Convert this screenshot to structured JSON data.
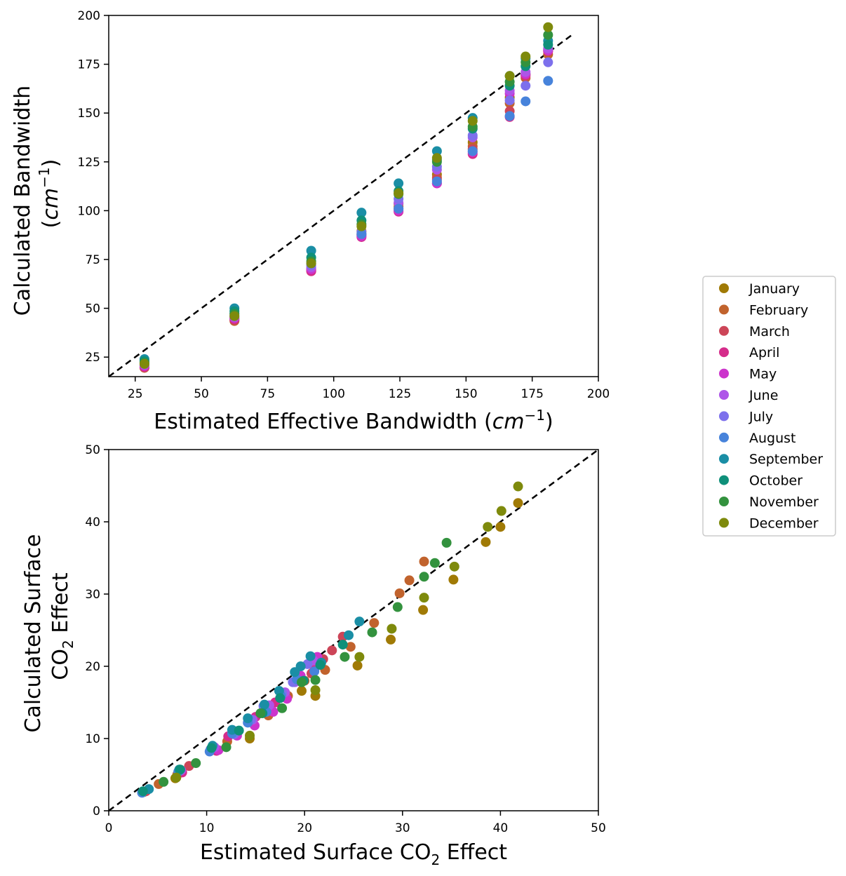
{
  "chart_data": [
    {
      "type": "scatter",
      "xlabel": "Estimated Effective Bandwidth (cm⁻¹)",
      "ylabel": [
        "Calculated Bandwidth",
        "(cm⁻¹)"
      ],
      "xlim": [
        15,
        200
      ],
      "ylim": [
        15,
        200
      ],
      "xticks": [
        25,
        50,
        75,
        100,
        125,
        150,
        175,
        200
      ],
      "yticks": [
        25,
        50,
        75,
        100,
        125,
        150,
        175,
        200
      ],
      "reference_line": {
        "style": "dashed",
        "color": "#000000",
        "points": [
          [
            15,
            15
          ],
          [
            190,
            190
          ]
        ]
      },
      "x": [
        28.5,
        62.5,
        91.5,
        110.5,
        124.5,
        139.0,
        152.5,
        166.5,
        172.5,
        181.0
      ],
      "series": [
        {
          "name": "January",
          "values": [
            19.8,
            44.8,
            70.0,
            89.5,
            103.5,
            118.5,
            135.0,
            158.0,
            170.0,
            182.5
          ]
        },
        {
          "name": "February",
          "values": [
            19.5,
            43.5,
            69.0,
            88.0,
            102.0,
            117.0,
            133.0,
            155.0,
            168.0,
            180.0
          ]
        },
        {
          "name": "March",
          "values": [
            19.8,
            44.0,
            69.5,
            87.5,
            101.0,
            116.0,
            131.5,
            151.0,
            169.0,
            181.5
          ]
        },
        {
          "name": "April",
          "values": [
            20.0,
            44.5,
            69.0,
            86.5,
            99.5,
            114.0,
            129.0,
            148.0,
            169.5,
            182.0
          ]
        },
        {
          "name": "May",
          "values": [
            20.5,
            45.0,
            70.0,
            87.0,
            100.0,
            114.0,
            130.0,
            160.0,
            170.0,
            182.0
          ]
        },
        {
          "name": "June",
          "values": [
            21.0,
            45.5,
            71.0,
            88.0,
            104.0,
            121.0,
            137.5,
            161.5,
            171.0,
            183.0
          ]
        },
        {
          "name": "July",
          "values": [
            21.5,
            46.0,
            72.0,
            89.0,
            106.0,
            122.5,
            138.5,
            156.5,
            164.0,
            176.0
          ]
        },
        {
          "name": "August",
          "values": [
            22.5,
            47.5,
            73.0,
            88.0,
            101.0,
            115.0,
            130.5,
            148.5,
            156.0,
            166.5
          ]
        },
        {
          "name": "September",
          "values": [
            24.0,
            50.0,
            79.5,
            99.0,
            114.0,
            130.5,
            147.5,
            169.0,
            178.0,
            187.0
          ]
        },
        {
          "name": "October",
          "values": [
            23.0,
            48.5,
            76.0,
            95.0,
            110.0,
            126.0,
            142.0,
            164.0,
            174.0,
            185.0
          ]
        },
        {
          "name": "November",
          "values": [
            22.0,
            47.0,
            74.0,
            93.0,
            108.5,
            125.0,
            143.0,
            166.0,
            176.0,
            190.0
          ]
        },
        {
          "name": "December",
          "values": [
            21.5,
            46.0,
            73.0,
            92.0,
            109.0,
            127.0,
            146.0,
            169.0,
            179.0,
            194.0
          ]
        }
      ]
    },
    {
      "type": "scatter",
      "xlabel": "Estimated Surface CO₂ Effect",
      "ylabel": [
        "Calculated Surface",
        "CO₂ Effect"
      ],
      "xlim": [
        0,
        50
      ],
      "ylim": [
        0,
        50
      ],
      "xticks": [
        0,
        10,
        20,
        30,
        40,
        50
      ],
      "yticks": [
        0,
        10,
        20,
        30,
        40,
        50
      ],
      "reference_line": {
        "style": "dashed",
        "color": "#000000",
        "points": [
          [
            0,
            0
          ],
          [
            50,
            50
          ]
        ]
      },
      "series": [
        {
          "name": "January",
          "points": [
            [
              41.8,
              42.6
            ],
            [
              40.0,
              39.3
            ],
            [
              38.5,
              37.2
            ],
            [
              35.2,
              32.0
            ],
            [
              32.1,
              27.8
            ],
            [
              28.8,
              23.7
            ],
            [
              25.4,
              20.1
            ],
            [
              21.1,
              15.9
            ],
            [
              19.7,
              16.6
            ],
            [
              14.4,
              10.0
            ],
            [
              6.8,
              4.5
            ],
            [
              3.6,
              2.6
            ]
          ]
        },
        {
          "name": "February",
          "points": [
            [
              32.2,
              34.5
            ],
            [
              30.7,
              31.9
            ],
            [
              29.7,
              30.1
            ],
            [
              27.1,
              26.0
            ],
            [
              24.7,
              22.7
            ],
            [
              22.1,
              19.5
            ],
            [
              20.0,
              18.0
            ],
            [
              18.3,
              15.9
            ],
            [
              16.3,
              13.2
            ],
            [
              12.1,
              9.6
            ],
            [
              7.0,
              5.0
            ],
            [
              5.1,
              3.7
            ]
          ]
        },
        {
          "name": "March",
          "points": [
            [
              23.9,
              24.1
            ],
            [
              22.8,
              22.2
            ],
            [
              21.9,
              21.0
            ],
            [
              20.7,
              19.0
            ],
            [
              18.0,
              16.2
            ],
            [
              16.5,
              14.0
            ],
            [
              13.0,
              10.8
            ],
            [
              8.2,
              6.2
            ],
            [
              3.8,
              2.7
            ]
          ]
        },
        {
          "name": "April",
          "points": [
            [
              21.0,
              19.5
            ],
            [
              19.5,
              18.0
            ],
            [
              17.0,
              15.0
            ],
            [
              16.0,
              13.8
            ],
            [
              15.0,
              13.0
            ],
            [
              12.2,
              10.3
            ],
            [
              11.0,
              8.3
            ],
            [
              7.5,
              5.3
            ]
          ]
        },
        {
          "name": "May",
          "points": [
            [
              21.3,
              21.3
            ],
            [
              19.6,
              18.7
            ],
            [
              18.2,
              15.5
            ],
            [
              16.8,
              13.7
            ],
            [
              14.9,
              11.8
            ],
            [
              13.1,
              10.4
            ],
            [
              11.2,
              8.4
            ]
          ]
        },
        {
          "name": "June",
          "points": [
            [
              20.9,
              20.8
            ],
            [
              19.0,
              17.8
            ],
            [
              18.0,
              16.4
            ],
            [
              16.4,
              14.6
            ],
            [
              14.7,
              12.6
            ],
            [
              13.0,
              11.0
            ],
            [
              10.8,
              8.8
            ],
            [
              7.4,
              5.6
            ]
          ]
        },
        {
          "name": "July",
          "points": [
            [
              20.3,
              20.3
            ],
            [
              18.8,
              17.8
            ],
            [
              17.7,
              16.3
            ],
            [
              15.8,
              14.5
            ],
            [
              14.5,
              12.6
            ],
            [
              12.8,
              10.6
            ],
            [
              10.4,
              8.5
            ]
          ]
        },
        {
          "name": "August",
          "points": [
            [
              21.0,
              19.3
            ],
            [
              19.2,
              18.2
            ],
            [
              17.6,
              15.9
            ],
            [
              16.1,
              13.7
            ],
            [
              14.2,
              12.2
            ],
            [
              12.6,
              10.7
            ],
            [
              10.3,
              8.2
            ],
            [
              7.1,
              5.4
            ],
            [
              3.4,
              2.5
            ]
          ]
        },
        {
          "name": "September",
          "points": [
            [
              25.6,
              26.2
            ],
            [
              24.5,
              24.3
            ],
            [
              21.7,
              20.5
            ],
            [
              20.6,
              21.4
            ],
            [
              19.6,
              20.0
            ],
            [
              19.0,
              19.2
            ],
            [
              17.4,
              16.6
            ],
            [
              15.9,
              14.7
            ],
            [
              14.2,
              12.8
            ],
            [
              12.6,
              11.2
            ],
            [
              10.6,
              9.0
            ],
            [
              7.2,
              5.7
            ],
            [
              4.1,
              3.0
            ]
          ]
        },
        {
          "name": "October",
          "points": [
            [
              23.9,
              23.0
            ],
            [
              21.6,
              20.2
            ],
            [
              19.9,
              18.0
            ],
            [
              17.5,
              15.6
            ],
            [
              15.7,
              13.5
            ],
            [
              13.3,
              11.1
            ],
            [
              10.5,
              8.7
            ],
            [
              7.3,
              5.7
            ],
            [
              3.5,
              2.7
            ]
          ]
        },
        {
          "name": "November",
          "points": [
            [
              34.5,
              37.1
            ],
            [
              33.3,
              34.3
            ],
            [
              32.2,
              32.4
            ],
            [
              29.5,
              28.2
            ],
            [
              26.9,
              24.7
            ],
            [
              24.1,
              21.3
            ],
            [
              21.1,
              18.1
            ],
            [
              19.7,
              17.8
            ],
            [
              17.7,
              14.2
            ],
            [
              15.5,
              13.5
            ],
            [
              12.0,
              8.8
            ],
            [
              8.9,
              6.6
            ],
            [
              5.6,
              4.0
            ]
          ]
        },
        {
          "name": "December",
          "points": [
            [
              41.8,
              44.9
            ],
            [
              40.1,
              41.5
            ],
            [
              38.7,
              39.3
            ],
            [
              35.3,
              33.8
            ],
            [
              32.2,
              29.5
            ],
            [
              28.9,
              25.2
            ],
            [
              25.6,
              21.3
            ],
            [
              21.1,
              16.7
            ],
            [
              14.4,
              10.4
            ],
            [
              6.9,
              4.6
            ]
          ]
        }
      ]
    }
  ],
  "legend": {
    "placement": "right, outside plots",
    "entries": [
      {
        "name": "January",
        "color": "#a07a05"
      },
      {
        "name": "February",
        "color": "#c1632d"
      },
      {
        "name": "March",
        "color": "#cc4558"
      },
      {
        "name": "April",
        "color": "#d52c8b"
      },
      {
        "name": "May",
        "color": "#cc34cc"
      },
      {
        "name": "June",
        "color": "#ae55e8"
      },
      {
        "name": "July",
        "color": "#7d70ec"
      },
      {
        "name": "August",
        "color": "#4783db"
      },
      {
        "name": "September",
        "color": "#1a8ea5"
      },
      {
        "name": "October",
        "color": "#0f907a"
      },
      {
        "name": "November",
        "color": "#33923e"
      },
      {
        "name": "December",
        "color": "#7e8a0c"
      }
    ]
  }
}
